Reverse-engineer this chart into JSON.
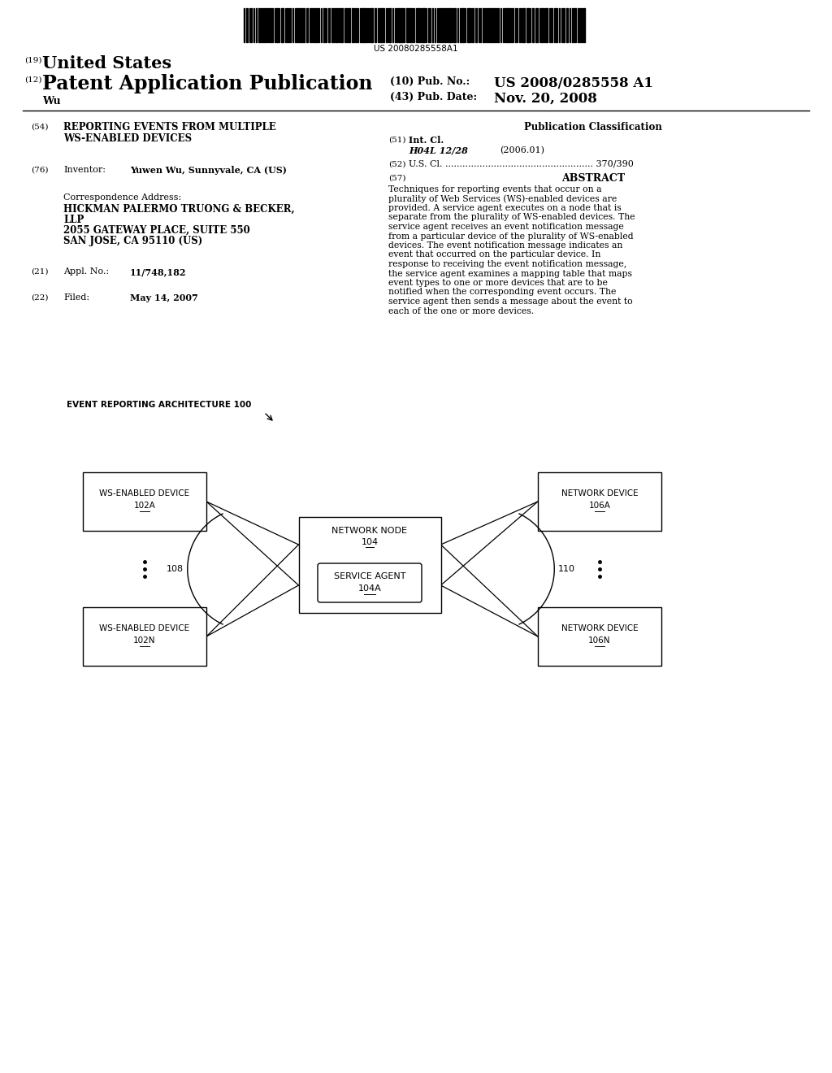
{
  "title_barcode": "US 20080285558A1",
  "header_19": "(19)",
  "header_19_text": "United States",
  "header_12": "(12)",
  "header_12_text": "Patent Application Publication",
  "header_inventor": "Wu",
  "header_10_label": "(10) Pub. No.:",
  "header_10_val": "US 2008/0285558 A1",
  "header_43_label": "(43) Pub. Date:",
  "header_43_val": "Nov. 20, 2008",
  "field_54_label": "(54)",
  "field_54_text1": "REPORTING EVENTS FROM MULTIPLE",
  "field_54_text2": "WS-ENABLED DEVICES",
  "pub_class_title": "Publication Classification",
  "field_51_label": "(51)",
  "field_51_text": "Int. Cl.",
  "field_51_class": "H04L 12/28",
  "field_51_year": "(2006.01)",
  "field_52_label": "(52)",
  "field_52_text": "U.S. Cl. .................................................... 370/390",
  "field_57_label": "(57)",
  "field_57_title": "ABSTRACT",
  "abstract_text": "Techniques for reporting events that occur on a plurality of Web Services (WS)-enabled devices are provided. A service agent executes on a node that is separate from the plurality of WS-enabled devices. The service agent receives an event notification message from a particular device of the plurality of WS-enabled devices. The event notification message indicates an event that occurred on the particular device. In response to receiving the event notification message, the service agent examines a mapping table that maps event types to one or more devices that are to be notified when the corresponding event occurs. The service agent then sends a message about the event to each of the one or more devices.",
  "field_76_label": "(76)",
  "field_76_text": "Inventor:",
  "field_76_val": "Yuwen Wu, Sunnyvale, CA (US)",
  "corr_title": "Correspondence Address:",
  "corr_line1": "HICKMAN PALERMO TRUONG & BECKER,",
  "corr_line2": "LLP",
  "corr_line3": "2055 GATEWAY PLACE, SUITE 550",
  "corr_line4": "SAN JOSE, CA 95110 (US)",
  "field_21_label": "(21)",
  "field_21_text": "Appl. No.:",
  "field_21_val": "11/748,182",
  "field_22_label": "(22)",
  "field_22_text": "Filed:",
  "field_22_val": "May 14, 2007",
  "diagram_label": "EVENT REPORTING ARCHITECTURE 100",
  "box_ws1_line1": "WS-ENABLED DEVICE",
  "box_ws1_line2": "102A",
  "box_wsn_line1": "WS-ENABLED DEVICE",
  "box_wsn_line2": "102N",
  "box_nn_line1": "NETWORK NODE",
  "box_nn_line2": "104",
  "box_sa_line1": "SERVICE AGENT",
  "box_sa_line2": "104A",
  "box_nd1_line1": "NETWORK DEVICE",
  "box_nd1_line2": "106A",
  "box_ndn_line1": "NETWORK DEVICE",
  "box_ndn_line2": "106N",
  "label_108": "108",
  "label_110": "110",
  "bg_color": "#ffffff",
  "text_color": "#000000"
}
